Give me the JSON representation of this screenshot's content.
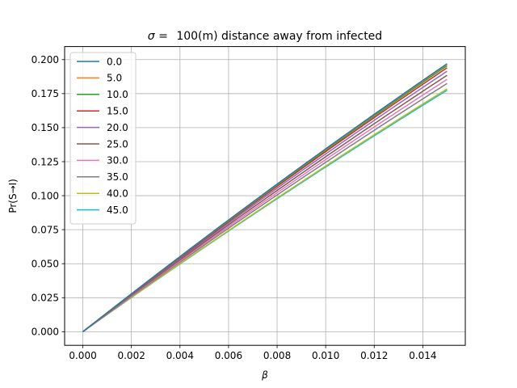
{
  "chart_data": {
    "type": "line",
    "title_prefix": "σ =",
    "title_rest": "100(m) distance away from infected",
    "xlabel": "β",
    "ylabel": "Pr(S→I)",
    "xlim": [
      -0.00075,
      0.01575
    ],
    "ylim": [
      -0.01,
      0.2096
    ],
    "xticks": [
      0.0,
      0.002,
      0.004,
      0.006,
      0.008,
      0.01,
      0.012,
      0.014
    ],
    "xtick_labels": [
      "0.000",
      "0.002",
      "0.004",
      "0.006",
      "0.008",
      "0.010",
      "0.012",
      "0.014"
    ],
    "yticks": [
      0.0,
      0.025,
      0.05,
      0.075,
      0.1,
      0.125,
      0.15,
      0.175,
      0.2
    ],
    "ytick_labels": [
      "0.000",
      "0.025",
      "0.050",
      "0.075",
      "0.100",
      "0.125",
      "0.150",
      "0.175",
      "0.200"
    ],
    "grid": true,
    "legend_position": "top-left",
    "x_range": [
      0.0,
      0.015
    ],
    "series": [
      {
        "name": "0.0",
        "color": "#1f77b4",
        "end_value": 0.197
      },
      {
        "name": "5.0",
        "color": "#ff7f0e",
        "end_value": 0.1965
      },
      {
        "name": "10.0",
        "color": "#2ca02c",
        "end_value": 0.1955
      },
      {
        "name": "15.0",
        "color": "#d62728",
        "end_value": 0.194
      },
      {
        "name": "20.0",
        "color": "#9467bd",
        "end_value": 0.1915
      },
      {
        "name": "25.0",
        "color": "#8c564b",
        "end_value": 0.1885
      },
      {
        "name": "30.0",
        "color": "#e377c2",
        "end_value": 0.1855
      },
      {
        "name": "35.0",
        "color": "#7f7f7f",
        "end_value": 0.1825
      },
      {
        "name": "40.0",
        "color": "#bcbd22",
        "end_value": 0.1785
      },
      {
        "name": "45.0",
        "color": "#17becf",
        "end_value": 0.1775
      }
    ]
  }
}
